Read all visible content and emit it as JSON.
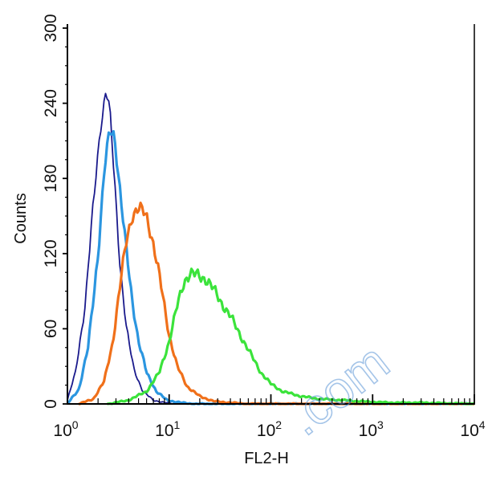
{
  "chart_data": {
    "type": "line",
    "xscale": "log",
    "xlim": [
      1,
      10000
    ],
    "ylim": [
      0,
      300
    ],
    "xlabel": "FL2-H",
    "ylabel": "Counts",
    "grid": false,
    "x_ticks": [
      {
        "base": "10",
        "exp": "0",
        "value": 1
      },
      {
        "base": "10",
        "exp": "1",
        "value": 10
      },
      {
        "base": "10",
        "exp": "2",
        "value": 100
      },
      {
        "base": "10",
        "exp": "3",
        "value": 1000
      },
      {
        "base": "10",
        "exp": "4",
        "value": 10000
      }
    ],
    "y_ticks": [
      "0",
      "60",
      "120",
      "180",
      "240",
      "300"
    ],
    "series": [
      {
        "color": "#1a1a8c",
        "x": [
          1.0,
          1.2,
          1.5,
          1.8,
          2.1,
          2.4,
          2.6,
          2.9,
          3.3,
          3.8,
          4.5,
          5.5,
          7.0,
          9.0,
          12.0
        ],
        "y": [
          3,
          25,
          80,
          160,
          220,
          250,
          235,
          180,
          110,
          60,
          28,
          10,
          3,
          1,
          0
        ]
      },
      {
        "color": "#2b96e0",
        "x": [
          1.0,
          1.3,
          1.6,
          2.0,
          2.3,
          2.6,
          2.9,
          3.2,
          3.7,
          4.3,
          5.0,
          6.0,
          7.5,
          9.5,
          13.0,
          18.0
        ],
        "y": [
          0,
          12,
          45,
          120,
          185,
          218,
          215,
          180,
          130,
          85,
          50,
          25,
          10,
          3,
          1,
          0
        ]
      },
      {
        "color": "#f0701a",
        "x": [
          1.3,
          1.8,
          2.3,
          2.8,
          3.3,
          3.8,
          4.3,
          4.8,
          5.3,
          6.0,
          7.0,
          8.5,
          10.0,
          12.0,
          15.0,
          20.0,
          28.0,
          40.0,
          60.0
        ],
        "y": [
          0,
          4,
          18,
          50,
          95,
          130,
          150,
          155,
          155,
          150,
          128,
          90,
          55,
          30,
          14,
          6,
          2,
          1,
          0
        ]
      },
      {
        "color": "#3be33b",
        "x": [
          2.5,
          4.0,
          6.0,
          8.0,
          10.0,
          12.0,
          14.0,
          16.0,
          18.0,
          20.0,
          23.0,
          27.0,
          32.0,
          40.0,
          50.0,
          65.0,
          80.0,
          100.0,
          130.0,
          200.0,
          300.0,
          500.0,
          800.0,
          1500.0,
          3000.0,
          10000.0
        ],
        "y": [
          0,
          3,
          10,
          25,
          50,
          78,
          98,
          104,
          103,
          102,
          100,
          92,
          82,
          70,
          55,
          38,
          25,
          16,
          10,
          6,
          4,
          3,
          2,
          1,
          1,
          0
        ]
      }
    ]
  },
  "watermark": ".com"
}
